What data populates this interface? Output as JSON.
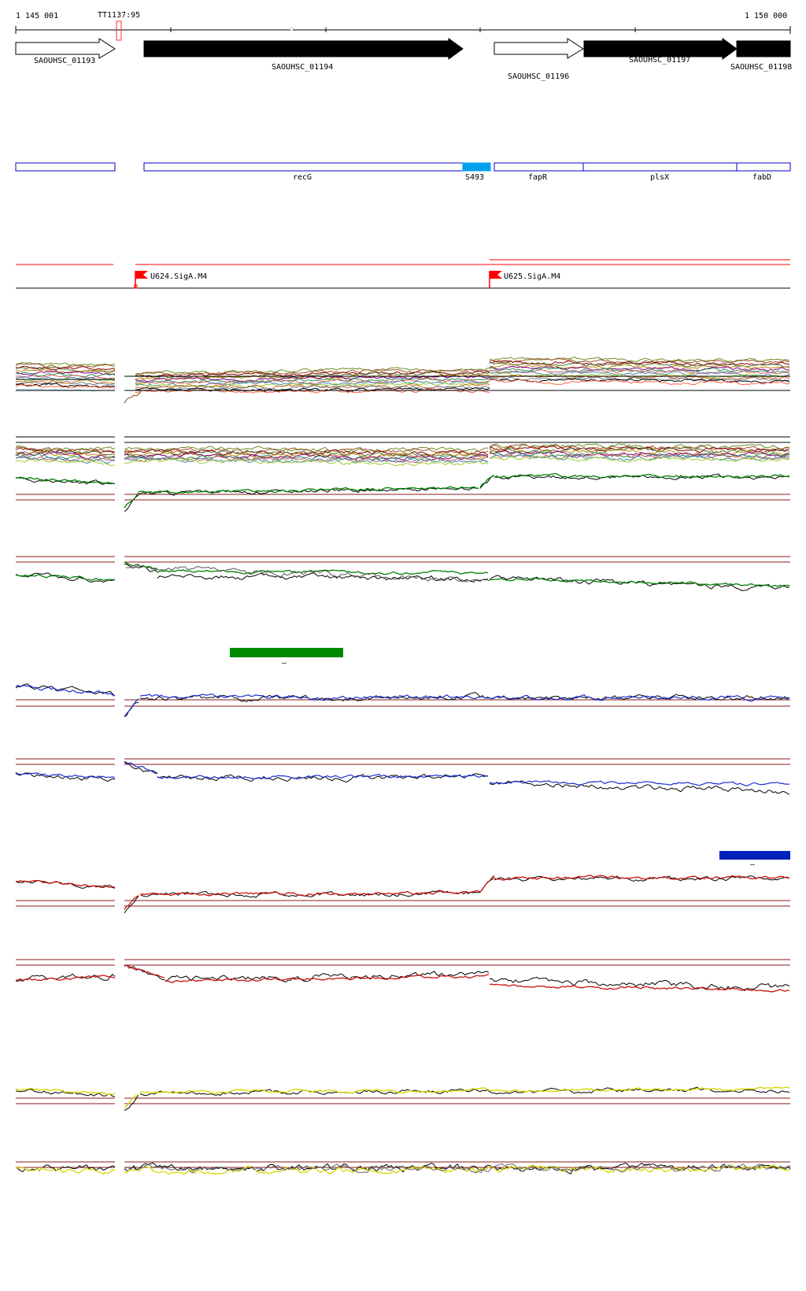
{
  "ruler": {
    "start_label": "1 145 001",
    "end_label": "1 150 000",
    "terminator_label": "TT1137:95"
  },
  "genes": [
    {
      "id": "SAOUHSC_01193",
      "label": "SAOUHSC_01193",
      "strand": "+",
      "fill": "outline"
    },
    {
      "id": "SAOUHSC_01194",
      "label": "SAOUHSC_01194",
      "strand": "+",
      "fill": "solid"
    },
    {
      "id": "SAOUHSC_01196",
      "label": "SAOUHSC_01196",
      "strand": "+",
      "fill": "outline"
    },
    {
      "id": "SAOUHSC_01197",
      "label": "SAOUHSC_01197",
      "strand": "+",
      "fill": "solid"
    },
    {
      "id": "SAOUHSC_01198",
      "label": "SAOUHSC_01198",
      "strand": "+",
      "fill": "solid"
    }
  ],
  "annotations": [
    {
      "id": "blank",
      "label": ""
    },
    {
      "id": "recG",
      "label": "recG"
    },
    {
      "id": "S493",
      "label": "S493",
      "highlight": true
    },
    {
      "id": "fapR",
      "label": "fapR"
    },
    {
      "id": "plsX",
      "label": "plsX"
    },
    {
      "id": "fabD",
      "label": "fabD"
    }
  ],
  "promoters": [
    {
      "label": "U624.SigA.M4"
    },
    {
      "label": "U625.SigA.M4"
    }
  ],
  "colors": {
    "gene_outline": "#000000",
    "annotation_box": "#0000cc",
    "annotation_highlight": "#00a0f0",
    "promoter_flag": "#ff0000",
    "threshold_line": "#8b1a1a",
    "track_green": "#008000",
    "track_blue": "#1a2fd0",
    "track_red": "#cc1010",
    "track_yellow": "#d8d800",
    "green_segment": "#008800",
    "blue_segment": "#0022bb"
  },
  "segment_marks": [
    {
      "id": "green-segment",
      "label": "–"
    },
    {
      "id": "blue-segment",
      "label": "–"
    }
  ]
}
